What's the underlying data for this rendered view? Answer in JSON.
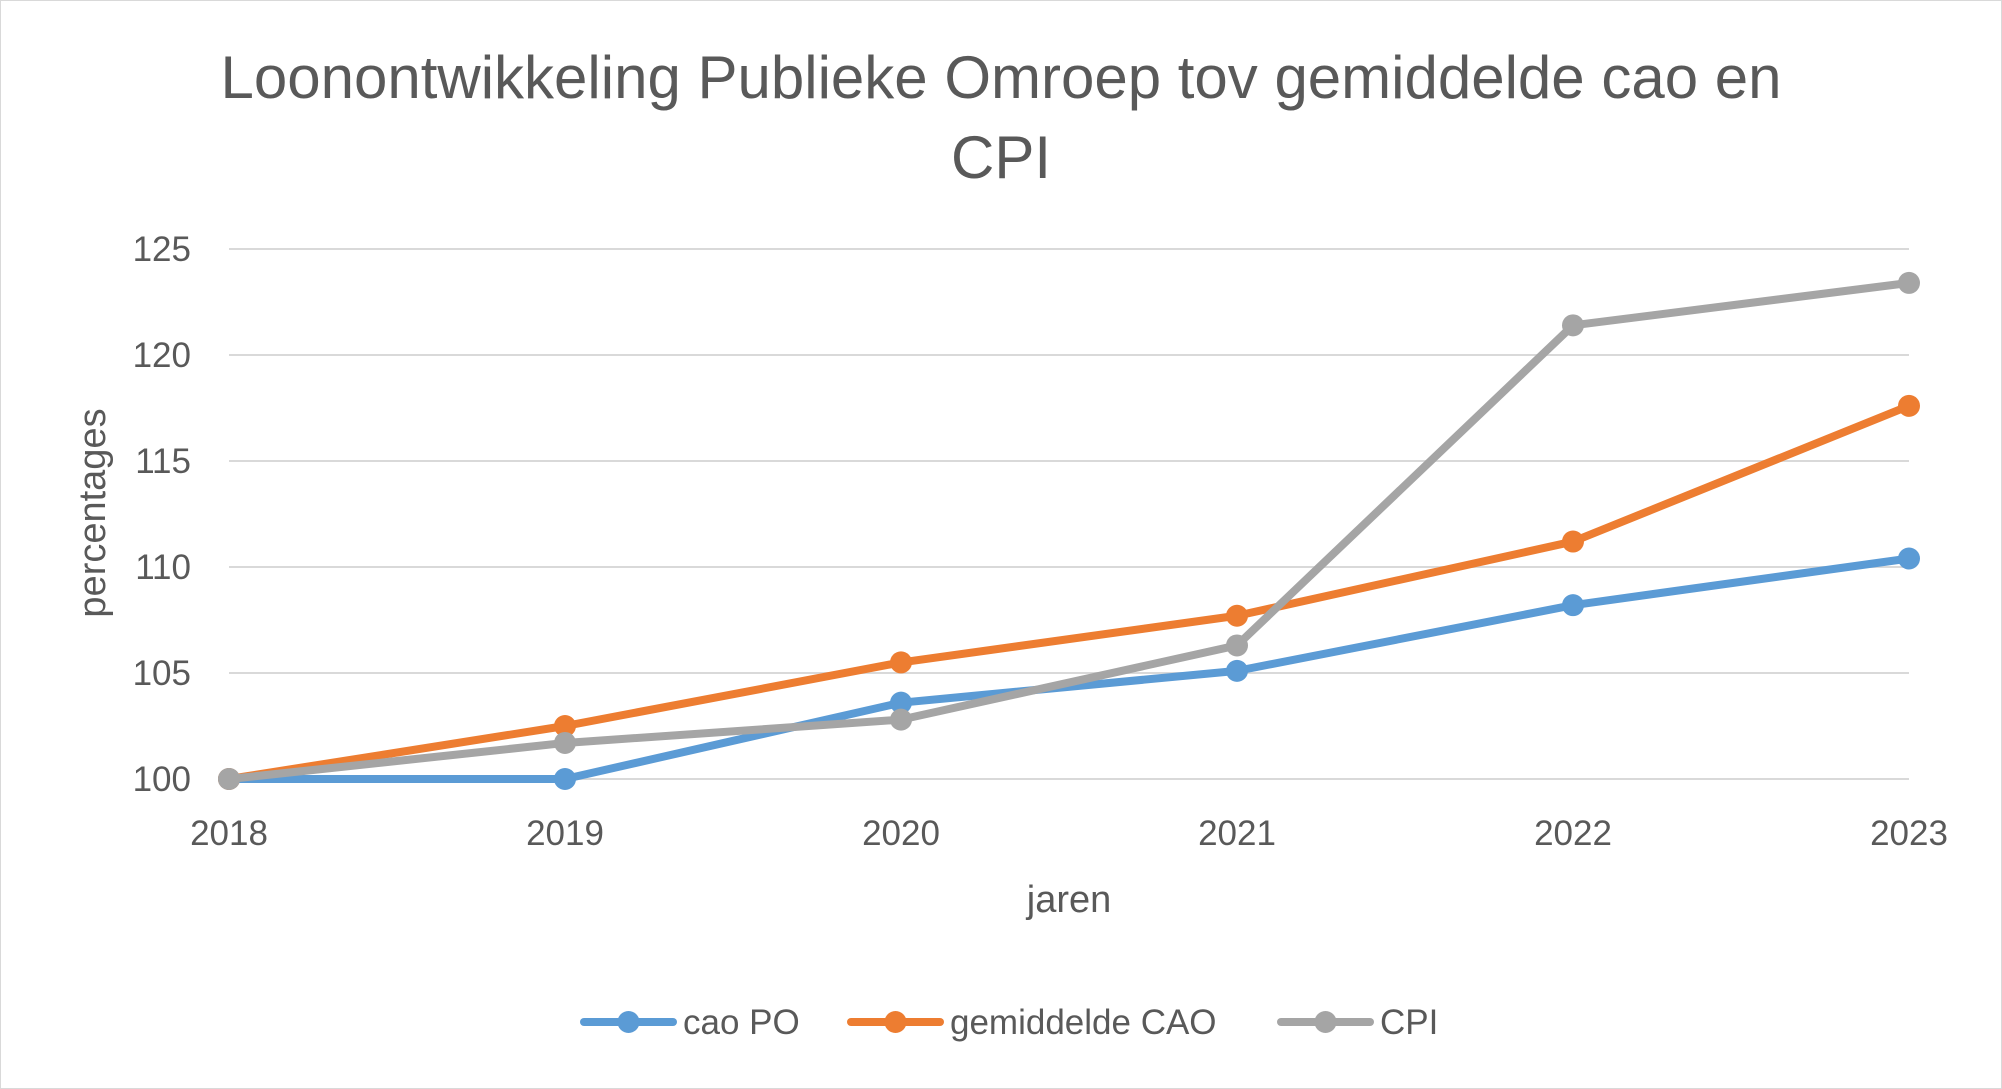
{
  "chart_data": {
    "type": "line",
    "title_lines": [
      "Loonontwikkeling Publieke Omroep tov gemiddelde cao en",
      "CPI"
    ],
    "xlabel": "jaren",
    "ylabel": "percentages",
    "x": [
      "2018",
      "2019",
      "2020",
      "2021",
      "2022",
      "2023"
    ],
    "ylim": [
      100,
      125
    ],
    "yticks": [
      "100",
      "105",
      "110",
      "115",
      "120",
      "125"
    ],
    "ytick_values": [
      100,
      105,
      110,
      115,
      120,
      125
    ],
    "grid": true,
    "legend_position": "bottom",
    "series": [
      {
        "name": "cao PO",
        "color": "#5b9bd5",
        "values": [
          100,
          100,
          103.6,
          105.1,
          108.2,
          110.4
        ]
      },
      {
        "name": "gemiddelde CAO",
        "color": "#ed7d31",
        "values": [
          100,
          102.5,
          105.5,
          107.7,
          111.2,
          117.6
        ]
      },
      {
        "name": "CPI",
        "color": "#a5a5a5",
        "values": [
          100,
          101.7,
          102.8,
          106.3,
          121.4,
          123.4
        ]
      }
    ]
  }
}
